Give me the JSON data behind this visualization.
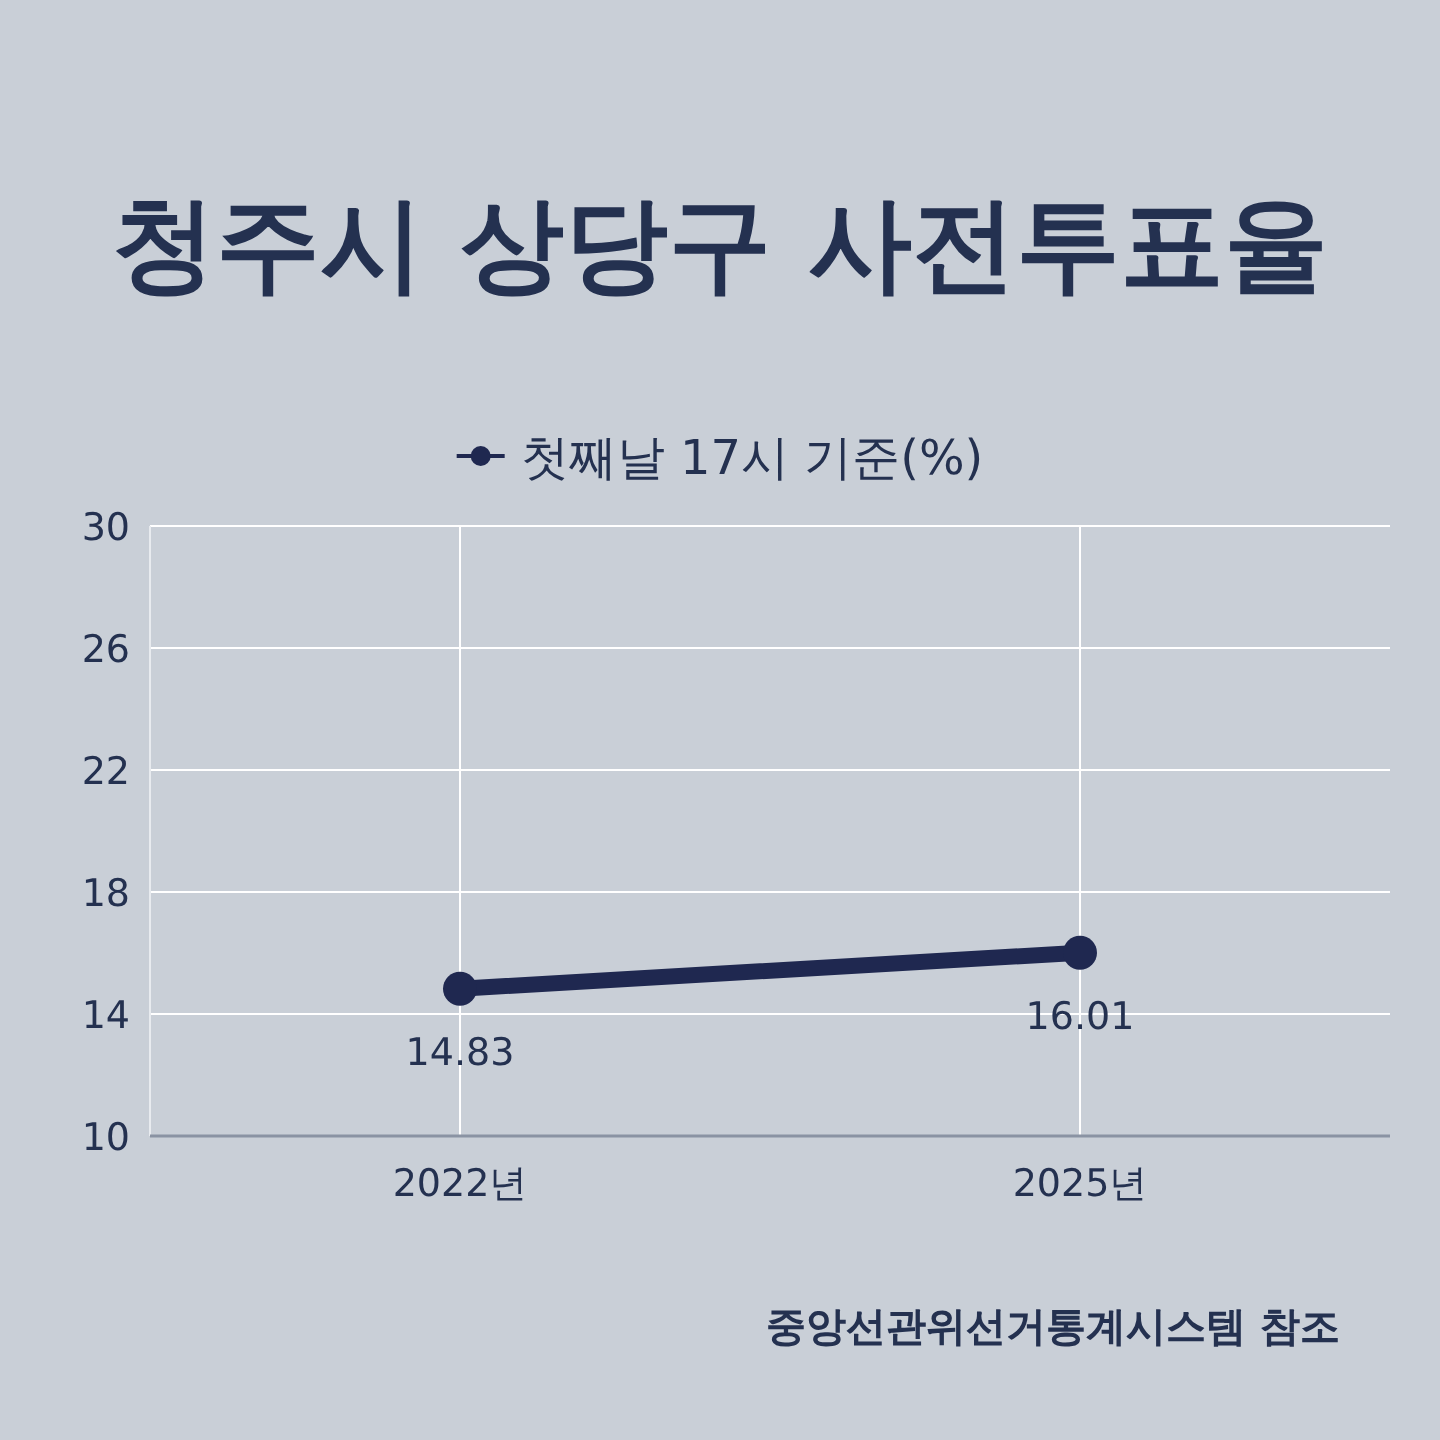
{
  "chart_data": {
    "type": "line",
    "title": "청주시 상당구 사전투표율",
    "categories": [
      "2022년",
      "2025년"
    ],
    "series": [
      {
        "name": "첫째날 17시 기준(%)",
        "color": "#1f2850",
        "values": [
          14.83,
          16.01
        ]
      }
    ],
    "ylim": [
      10,
      30
    ],
    "yticks": [
      10,
      14,
      18,
      22,
      26,
      30
    ],
    "grid": true,
    "legend": "top",
    "marker": "circle",
    "line_style": "solid",
    "data_labels": true,
    "annotations": [
      "중앙선관위선거통계시스템 참조"
    ]
  }
}
